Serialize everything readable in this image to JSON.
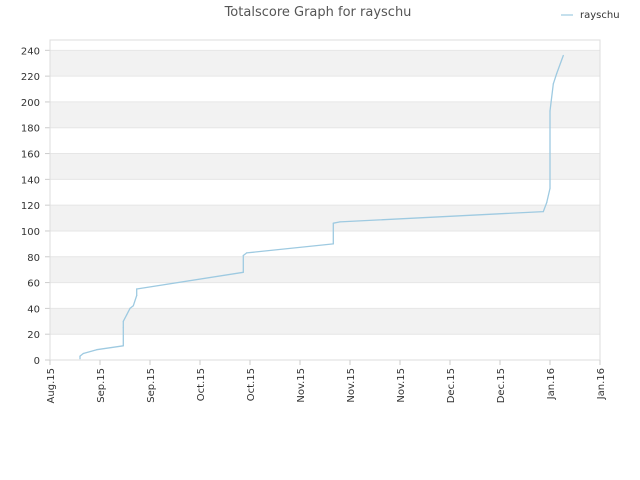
{
  "chart_data": {
    "type": "line",
    "title": "Totalscore Graph for rayschu",
    "xlabel": "",
    "ylabel": "",
    "ylim": [
      0,
      248
    ],
    "y_ticks": [
      0,
      20,
      40,
      60,
      80,
      100,
      120,
      140,
      160,
      180,
      200,
      220,
      240
    ],
    "x_tick_labels": [
      "Aug.15",
      "Sep.15",
      "Sep.15",
      "Oct.15",
      "Oct.15",
      "Nov.15",
      "Nov.15",
      "Nov.15",
      "Dec.15",
      "Dec.15",
      "Jan.16",
      "Jan.16"
    ],
    "grid": "horizontal, alternating bands",
    "legend_position": "top-right",
    "series": [
      {
        "name": "rayschu",
        "color": "#9ecae1",
        "x": [
          "2015-08-19",
          "2015-08-19",
          "2015-08-20",
          "2015-08-24",
          "2015-09-01",
          "2015-09-01",
          "2015-09-01",
          "2015-09-02",
          "2015-09-03",
          "2015-09-04",
          "2015-09-05",
          "2015-09-05",
          "2015-09-05",
          "2015-10-07",
          "2015-10-07",
          "2015-10-08",
          "2015-11-03",
          "2015-11-03",
          "2015-11-05",
          "2016-01-05",
          "2016-01-06",
          "2016-01-07",
          "2016-01-07",
          "2016-01-08",
          "2016-01-09",
          "2016-01-11"
        ],
        "values": [
          1,
          3,
          5,
          8,
          11,
          25,
          30,
          35,
          40,
          42,
          50,
          55,
          55,
          68,
          81,
          83,
          90,
          106,
          107,
          115,
          122,
          133,
          193,
          214,
          222,
          236
        ]
      }
    ]
  }
}
